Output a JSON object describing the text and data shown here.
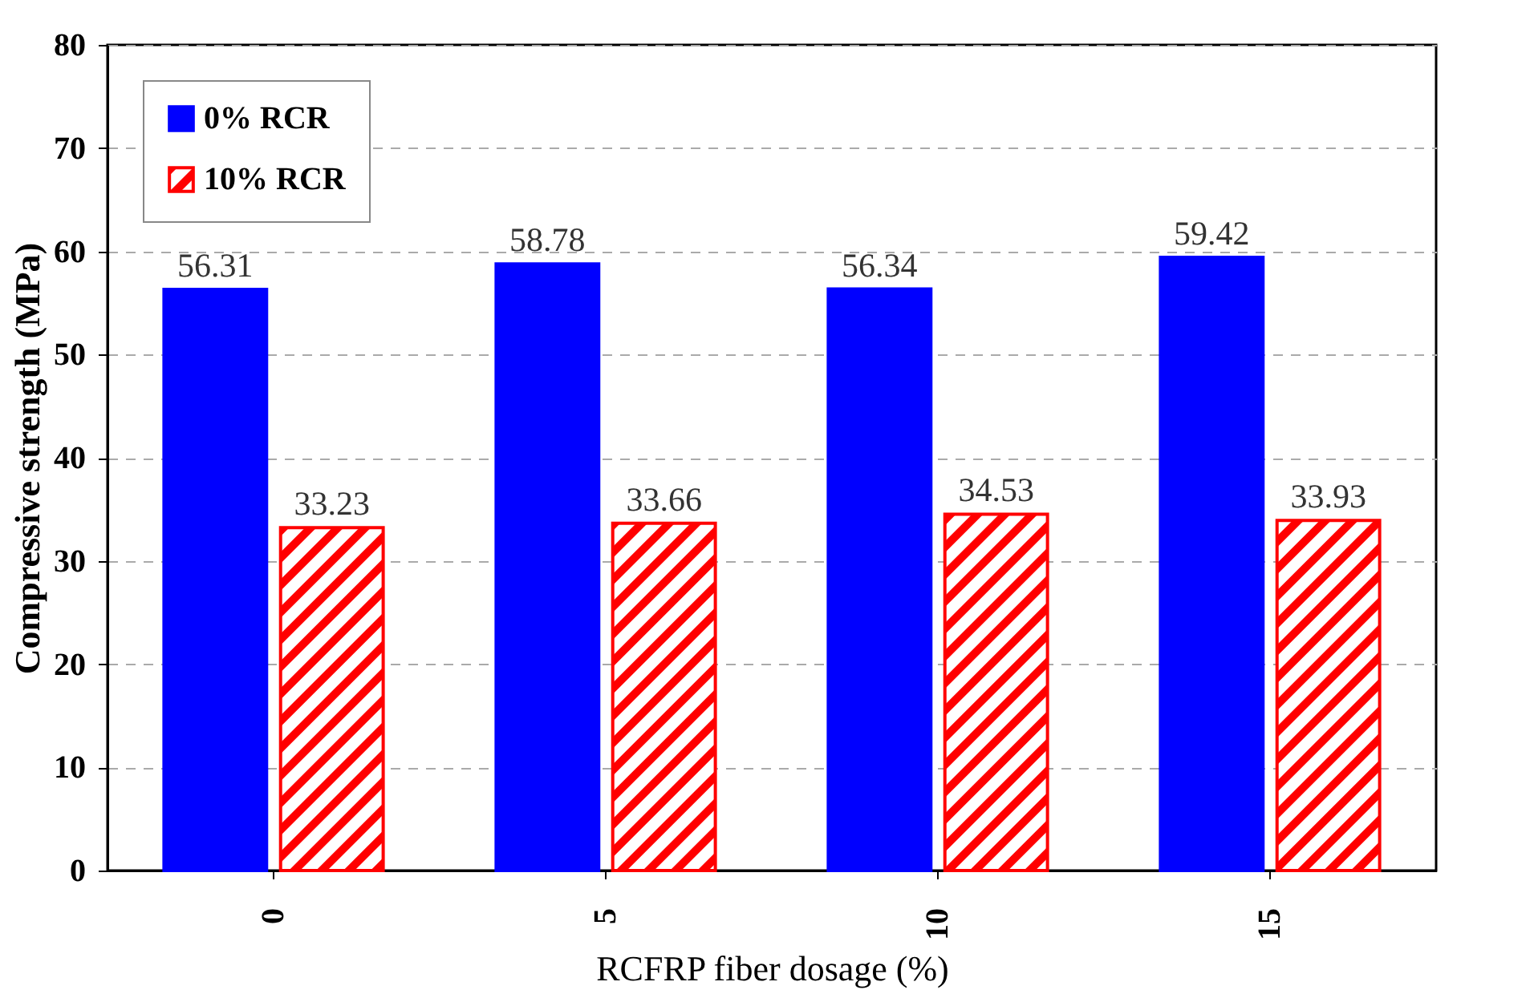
{
  "chart_data": {
    "type": "bar",
    "xlabel": "RCFRP fiber dosage (%)",
    "ylabel": "Compressive strength (MPa)",
    "categories": [
      "0",
      "5",
      "10",
      "15"
    ],
    "series": [
      {
        "name": "0% RCR",
        "color": "#0000ff",
        "values": [
          56.31,
          58.78,
          56.34,
          59.42
        ]
      },
      {
        "name": "10% RCR",
        "color": "#ff0000",
        "values": [
          33.23,
          33.66,
          34.53,
          33.93
        ]
      }
    ],
    "ylim": [
      0,
      80
    ],
    "yticks": [
      0,
      10,
      20,
      30,
      40,
      50,
      60,
      70,
      80
    ],
    "grid": "y",
    "legend": "top left",
    "data_labels": true
  }
}
